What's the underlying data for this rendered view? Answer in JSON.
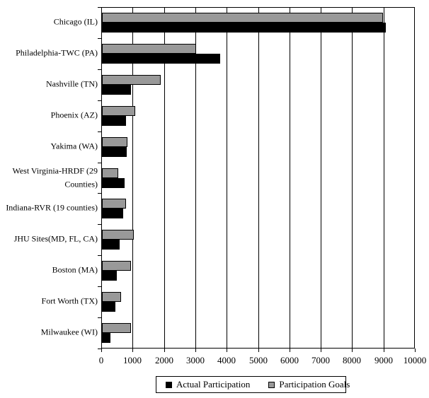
{
  "chart_data": {
    "type": "bar",
    "orientation": "horizontal",
    "title": "",
    "xlabel": "",
    "ylabel": "",
    "categories": [
      "Chicago (IL)",
      "Philadelphia-TWC (PA)",
      "Nashville (TN)",
      "Phoenix (AZ)",
      "Yakima (WA)",
      "West Virginia-HRDF (29 Counties)",
      "Indiana-RVR (19 counties)",
      "JHU Sites(MD, FL, CA)",
      "Boston (MA)",
      "Fort Worth (TX)",
      "Milwaukee (WI)"
    ],
    "series": [
      {
        "name": "Actual Participation",
        "color": "#000000",
        "values": [
          9050,
          3770,
          925,
          775,
          785,
          730,
          685,
          565,
          480,
          440,
          280
        ]
      },
      {
        "name": "Participation Goals",
        "color": "#999999",
        "values": [
          8970,
          3000,
          1870,
          1050,
          815,
          530,
          775,
          1025,
          925,
          620,
          925
        ]
      }
    ],
    "xlim": [
      0,
      10000
    ],
    "xticks": [
      0,
      1000,
      2000,
      3000,
      4000,
      5000,
      6000,
      7000,
      8000,
      9000,
      10000
    ],
    "grid": true,
    "legend_position": "bottom"
  }
}
